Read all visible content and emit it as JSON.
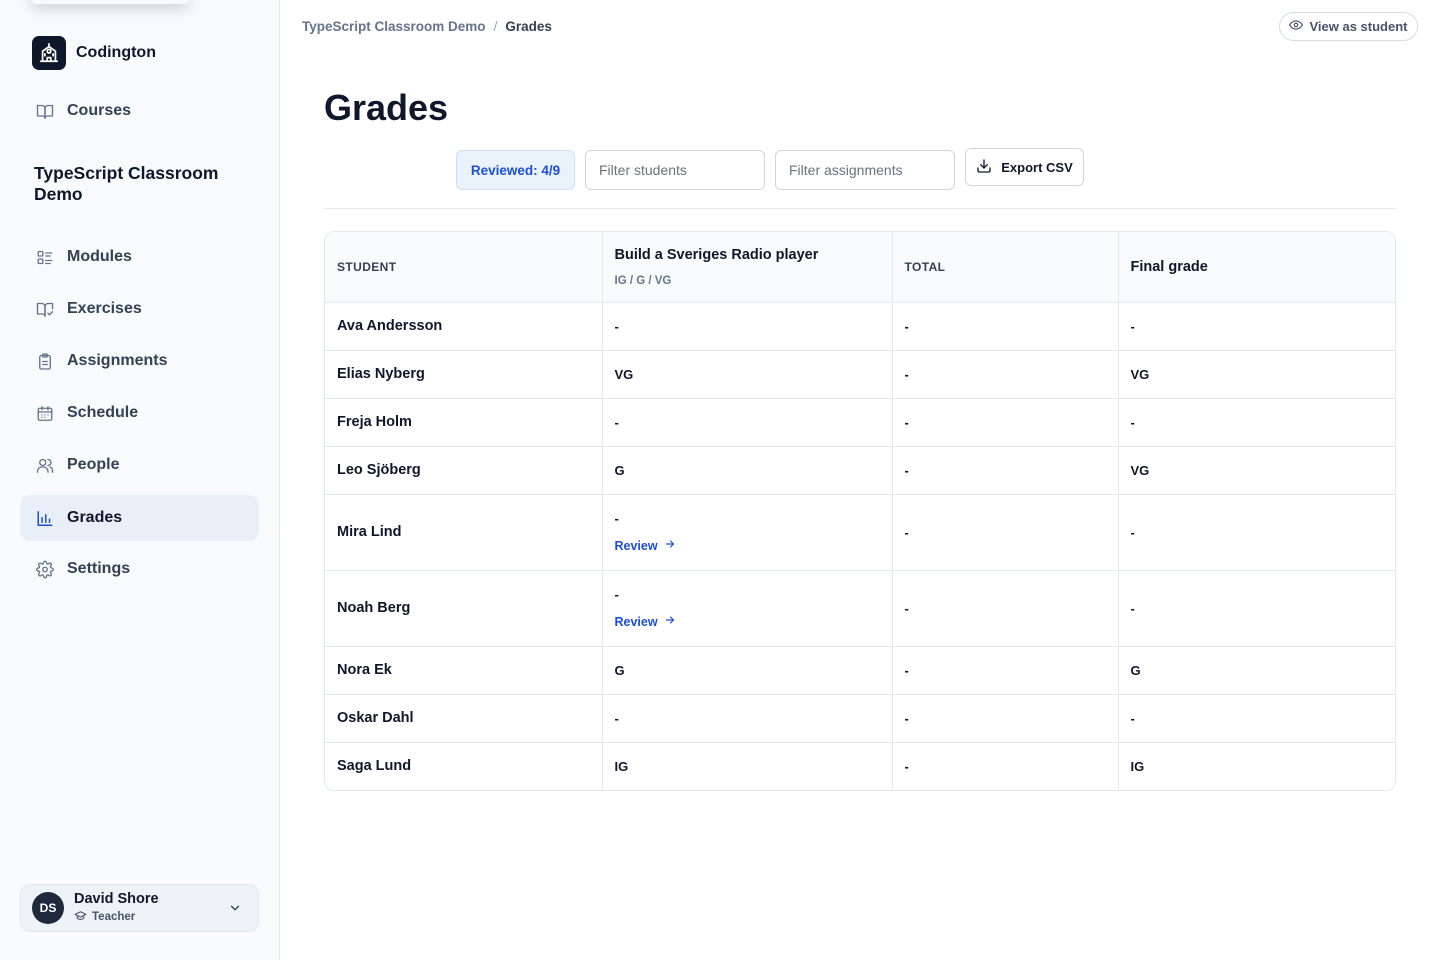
{
  "sidebar": {
    "brand": "Codington",
    "top_nav": [
      {
        "label": "Courses",
        "icon": "book-open-icon"
      }
    ],
    "course_title": "TypeScript Classroom Demo",
    "nav": [
      {
        "label": "Modules",
        "icon": "list-icon"
      },
      {
        "label": "Exercises",
        "icon": "book-check-icon"
      },
      {
        "label": "Assignments",
        "icon": "clipboard-icon"
      },
      {
        "label": "Schedule",
        "icon": "calendar-icon"
      },
      {
        "label": "People",
        "icon": "users-icon"
      },
      {
        "label": "Grades",
        "icon": "bar-chart-icon",
        "active": true
      },
      {
        "label": "Settings",
        "icon": "gear-icon"
      }
    ],
    "user": {
      "initials": "DS",
      "name": "David Shore",
      "role": "Teacher"
    }
  },
  "breadcrumb": {
    "parent": "TypeScript Classroom Demo",
    "separator": "/",
    "current": "Grades"
  },
  "header": {
    "view_as_student": "View as student"
  },
  "page_title": "Grades",
  "toolbar": {
    "reviewed": "Reviewed: 4/9",
    "filter_students_placeholder": "Filter students",
    "filter_assignments_placeholder": "Filter assignments",
    "export": "Export CSV"
  },
  "table": {
    "columns": {
      "student": "STUDENT",
      "assignment_title": "Build a Sveriges Radio player",
      "assignment_scale": "IG / G / VG",
      "total": "TOTAL",
      "final": "Final grade"
    },
    "review_label": "Review",
    "rows": [
      {
        "student": "Ava Andersson",
        "grade": "-",
        "total": "-",
        "final": "-"
      },
      {
        "student": "Elias Nyberg",
        "grade": "VG",
        "total": "-",
        "final": "VG"
      },
      {
        "student": "Freja Holm",
        "grade": "-",
        "total": "-",
        "final": "-"
      },
      {
        "student": "Leo Sjöberg",
        "grade": "G",
        "total": "-",
        "final": "VG"
      },
      {
        "student": "Mira Lind",
        "grade": "-",
        "review": true,
        "total": "-",
        "final": "-"
      },
      {
        "student": "Noah Berg",
        "grade": "-",
        "review": true,
        "total": "-",
        "final": "-"
      },
      {
        "student": "Nora Ek",
        "grade": "G",
        "total": "-",
        "final": "G"
      },
      {
        "student": "Oskar Dahl",
        "grade": "-",
        "total": "-",
        "final": "-"
      },
      {
        "student": "Saga Lund",
        "grade": "IG",
        "total": "-",
        "final": "IG"
      }
    ]
  },
  "colors": {
    "accent": "#1d4ed8",
    "active_nav_bg": "#e9eff8",
    "sidebar_bg": "#f8fafc"
  }
}
